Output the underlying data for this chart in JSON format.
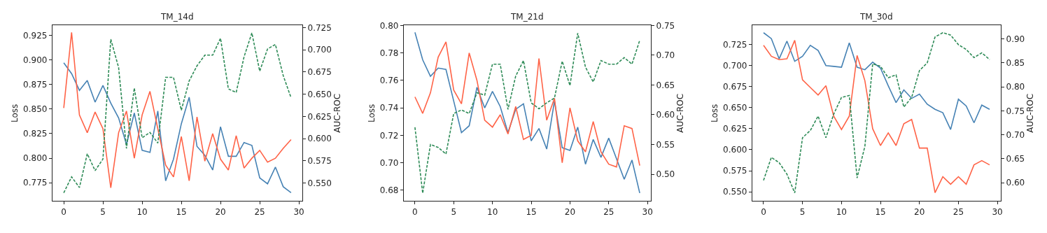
{
  "chart_data": [
    {
      "type": "line",
      "title": "TM_14d",
      "ylabel": "Loss",
      "y2label": "AUC-ROC",
      "x": [
        0,
        1,
        2,
        3,
        4,
        5,
        6,
        7,
        8,
        9,
        10,
        11,
        12,
        13,
        14,
        15,
        16,
        17,
        18,
        19,
        20,
        21,
        22,
        23,
        24,
        25,
        26,
        27,
        28,
        29
      ],
      "xlim": [
        -1.45,
        30.45
      ],
      "xticks": [
        0,
        5,
        10,
        15,
        20,
        25,
        30
      ],
      "ylim": [
        0.7565,
        0.935
      ],
      "yticks": [
        0.775,
        {
          "value": 0.8,
          "label": "0.800"
        },
        0.825,
        {
          "value": 0.85,
          "label": "0.850"
        },
        0.875,
        {
          "value": 0.9,
          "label": "0.900"
        },
        0.925
      ],
      "y2lim": [
        0.5298,
        0.7274
      ],
      "y2ticks": [
        {
          "value": 0.55,
          "label": "0.550"
        },
        0.575,
        {
          "value": 0.6,
          "label": "0.600"
        },
        0.625,
        {
          "value": 0.65,
          "label": "0.650"
        },
        0.675,
        {
          "value": 0.7,
          "label": "0.700"
        },
        0.725
      ],
      "series": [
        {
          "color": "#4682b4",
          "line_style": "solid",
          "values": [
            0.897,
            0.886,
            0.869,
            0.879,
            0.857,
            0.874,
            0.856,
            0.841,
            0.814,
            0.846,
            0.808,
            0.806,
            0.848,
            0.777,
            0.799,
            0.835,
            0.862,
            0.812,
            0.803,
            0.788,
            0.832,
            0.802,
            0.802,
            0.816,
            0.813,
            0.78,
            0.774,
            0.791,
            0.771,
            0.765
          ]
        },
        {
          "color": "#ff6347",
          "line_style": "solid",
          "values": [
            0.851,
            0.928,
            0.844,
            0.826,
            0.847,
            0.83,
            0.77,
            0.826,
            0.848,
            0.8,
            0.844,
            0.868,
            0.83,
            0.793,
            0.781,
            0.822,
            0.777,
            0.842,
            0.797,
            0.825,
            0.799,
            0.788,
            0.823,
            0.79,
            0.8,
            0.808,
            0.796,
            0.8,
            0.81,
            0.819
          ]
        },
        {
          "color": "#2e8b57",
          "line_style": "dashed",
          "axis": "y2",
          "values": [
            0.539,
            0.557,
            0.545,
            0.583,
            0.564,
            0.577,
            0.712,
            0.68,
            0.589,
            0.657,
            0.601,
            0.607,
            0.595,
            0.669,
            0.669,
            0.632,
            0.665,
            0.682,
            0.694,
            0.694,
            0.713,
            0.656,
            0.652,
            0.692,
            0.719,
            0.676,
            0.701,
            0.706,
            0.671,
            0.646
          ]
        }
      ]
    },
    {
      "type": "line",
      "title": "TM_21d",
      "ylabel": "Loss",
      "y2label": "AUC-ROC",
      "x": [
        0,
        1,
        2,
        3,
        4,
        5,
        6,
        7,
        8,
        9,
        10,
        11,
        12,
        13,
        14,
        15,
        16,
        17,
        18,
        19,
        20,
        21,
        22,
        23,
        24,
        25,
        26,
        27,
        28,
        29
      ],
      "xlim": [
        -1.45,
        30.45
      ],
      "xticks": [
        0,
        5,
        10,
        15,
        20,
        25,
        30
      ],
      "ylim": [
        0.6722,
        0.8
      ],
      "yticks": [
        0.68,
        {
          "value": 0.7,
          "label": "0.70"
        },
        0.72,
        0.74,
        0.76,
        0.78,
        {
          "value": 0.8,
          "label": "0.80"
        }
      ],
      "y2lim": [
        0.455,
        0.75
      ],
      "y2ticks": [
        {
          "value": 0.5,
          "label": "0.50"
        },
        0.55,
        {
          "value": 0.6,
          "label": "0.60"
        },
        0.65,
        {
          "value": 0.7,
          "label": "0.70"
        },
        0.75
      ],
      "series": [
        {
          "color": "#4682b4",
          "line_style": "solid",
          "values": [
            0.795,
            0.775,
            0.763,
            0.769,
            0.768,
            0.745,
            0.722,
            0.727,
            0.755,
            0.74,
            0.752,
            0.741,
            0.722,
            0.739,
            0.743,
            0.716,
            0.725,
            0.71,
            0.745,
            0.711,
            0.709,
            0.726,
            0.699,
            0.717,
            0.704,
            0.718,
            0.703,
            0.688,
            0.702,
            0.678
          ]
        },
        {
          "color": "#ff6347",
          "line_style": "solid",
          "values": [
            0.748,
            0.736,
            0.751,
            0.777,
            0.788,
            0.753,
            0.743,
            0.78,
            0.76,
            0.731,
            0.726,
            0.735,
            0.721,
            0.741,
            0.717,
            0.72,
            0.776,
            0.731,
            0.747,
            0.7,
            0.74,
            0.716,
            0.708,
            0.73,
            0.708,
            0.699,
            0.697,
            0.727,
            0.725,
            0.698
          ]
        },
        {
          "color": "#2e8b57",
          "line_style": "dashed",
          "axis": "y2",
          "values": [
            0.579,
            0.468,
            0.55,
            0.545,
            0.534,
            0.602,
            0.608,
            0.602,
            0.637,
            0.633,
            0.685,
            0.685,
            0.609,
            0.665,
            0.691,
            0.62,
            0.61,
            0.62,
            0.628,
            0.69,
            0.649,
            0.737,
            0.68,
            0.655,
            0.691,
            0.685,
            0.685,
            0.696,
            0.685,
            0.725
          ]
        }
      ]
    },
    {
      "type": "line",
      "title": "TM_30d",
      "ylabel": "Loss",
      "y2label": "AUC-ROC",
      "x": [
        0,
        1,
        2,
        3,
        4,
        5,
        6,
        7,
        8,
        9,
        10,
        11,
        12,
        13,
        14,
        15,
        16,
        17,
        18,
        19,
        20,
        21,
        22,
        23,
        24,
        25,
        26,
        27,
        28,
        29
      ],
      "xlim": [
        -1.45,
        30.45
      ],
      "xticks": [
        0,
        5,
        10,
        15,
        20,
        25,
        30
      ],
      "ylim": [
        0.5391,
        0.7476
      ],
      "yticks": [
        {
          "value": 0.55,
          "label": "0.550"
        },
        0.575,
        {
          "value": 0.6,
          "label": "0.600"
        },
        0.625,
        {
          "value": 0.65,
          "label": "0.650"
        },
        0.675,
        {
          "value": 0.7,
          "label": "0.700"
        },
        0.725
      ],
      "y2lim": [
        0.562,
        0.928
      ],
      "y2ticks": [
        {
          "value": 0.6,
          "label": "0.60"
        },
        0.65,
        {
          "value": 0.7,
          "label": "0.70"
        },
        0.75,
        {
          "value": 0.8,
          "label": "0.80"
        },
        0.85,
        {
          "value": 0.9,
          "label": "0.90"
        }
      ],
      "series": [
        {
          "color": "#4682b4",
          "line_style": "solid",
          "values": [
            0.739,
            0.732,
            0.708,
            0.729,
            0.705,
            0.711,
            0.724,
            0.718,
            0.7,
            0.699,
            0.698,
            0.727,
            0.698,
            0.695,
            0.704,
            0.697,
            0.676,
            0.656,
            0.671,
            0.661,
            0.666,
            0.654,
            0.648,
            0.644,
            0.624,
            0.66,
            0.652,
            0.632,
            0.653,
            0.648
          ]
        },
        {
          "color": "#ff6347",
          "line_style": "solid",
          "values": [
            0.724,
            0.711,
            0.707,
            0.708,
            0.73,
            0.683,
            0.674,
            0.665,
            0.676,
            0.64,
            0.624,
            0.64,
            0.712,
            0.682,
            0.625,
            0.605,
            0.62,
            0.605,
            0.631,
            0.636,
            0.602,
            0.602,
            0.549,
            0.568,
            0.559,
            0.568,
            0.559,
            0.582,
            0.587,
            0.582
          ]
        },
        {
          "color": "#2e8b57",
          "line_style": "dashed",
          "axis": "y2",
          "values": [
            0.605,
            0.653,
            0.642,
            0.618,
            0.579,
            0.694,
            0.709,
            0.739,
            0.694,
            0.743,
            0.778,
            0.782,
            0.61,
            0.676,
            0.848,
            0.843,
            0.819,
            0.825,
            0.758,
            0.778,
            0.834,
            0.85,
            0.904,
            0.913,
            0.908,
            0.888,
            0.878,
            0.861,
            0.871,
            0.857
          ]
        }
      ]
    }
  ]
}
